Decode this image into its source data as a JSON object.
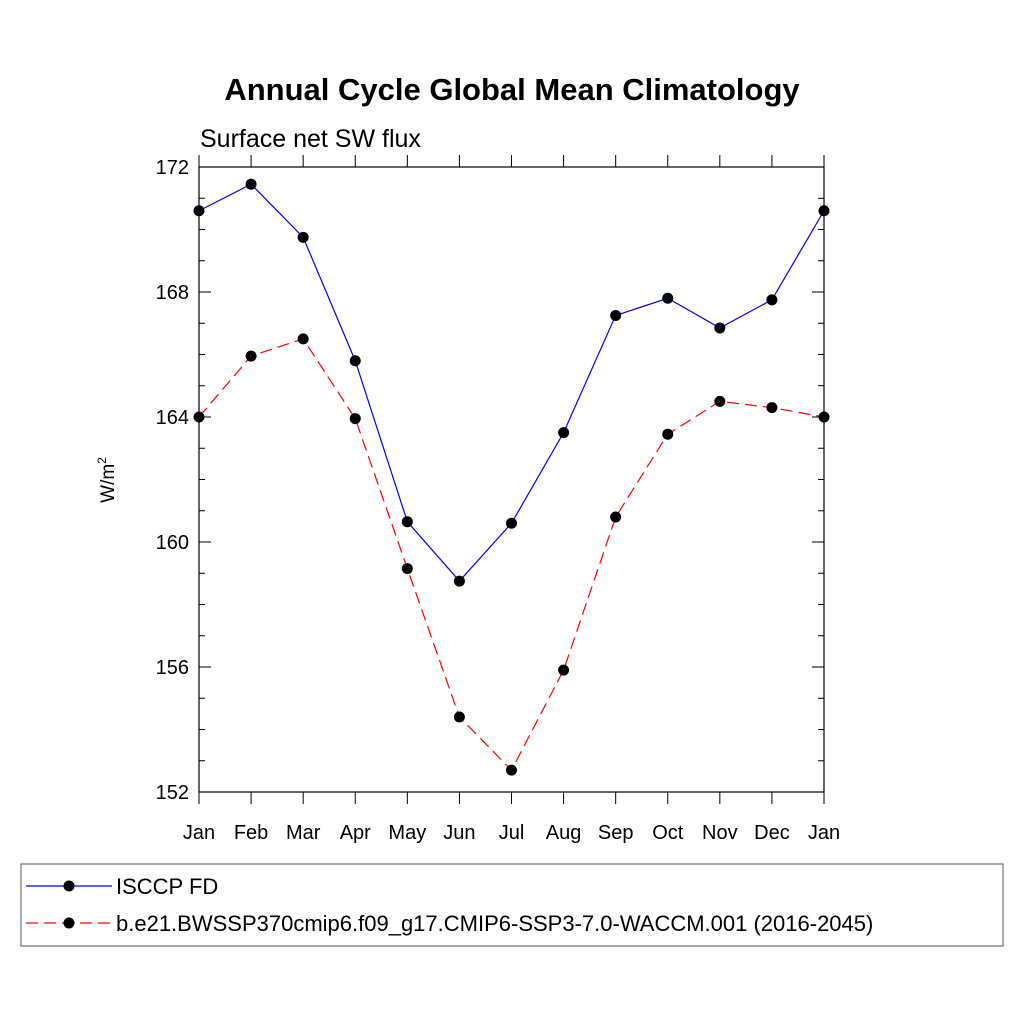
{
  "chart_data": {
    "type": "line",
    "title": "Annual Cycle Global Mean Climatology",
    "subtitle": "Surface net SW flux",
    "ylabel": "W/m",
    "ylabel_superscript": "2",
    "ylim": [
      152,
      172
    ],
    "yticks": [
      152,
      156,
      160,
      164,
      168,
      172
    ],
    "ytick_labels": [
      "152",
      "156",
      "160",
      "164",
      "168",
      "172"
    ],
    "categories": [
      "Jan",
      "Feb",
      "Mar",
      "Apr",
      "May",
      "Jun",
      "Jul",
      "Aug",
      "Sep",
      "Oct",
      "Nov",
      "Dec",
      "Jan"
    ],
    "series": [
      {
        "name": "ISCCP FD",
        "color": "#0000ff",
        "dash": "solid",
        "values": [
          170.6,
          171.45,
          169.75,
          165.8,
          160.65,
          158.75,
          160.6,
          163.5,
          167.25,
          167.8,
          166.85,
          167.75,
          170.6
        ]
      },
      {
        "name": "b.e21.BWSSP370cmip6.f09_g17.CMIP6-SSP3-7.0-WACCM.001 (2016-2045)",
        "color": "#ff0000",
        "dash": "dashed",
        "values": [
          164.0,
          165.95,
          166.5,
          163.95,
          159.15,
          154.4,
          152.7,
          155.9,
          160.8,
          163.45,
          164.5,
          164.3,
          164.0
        ]
      }
    ],
    "legend_position": "bottom"
  }
}
